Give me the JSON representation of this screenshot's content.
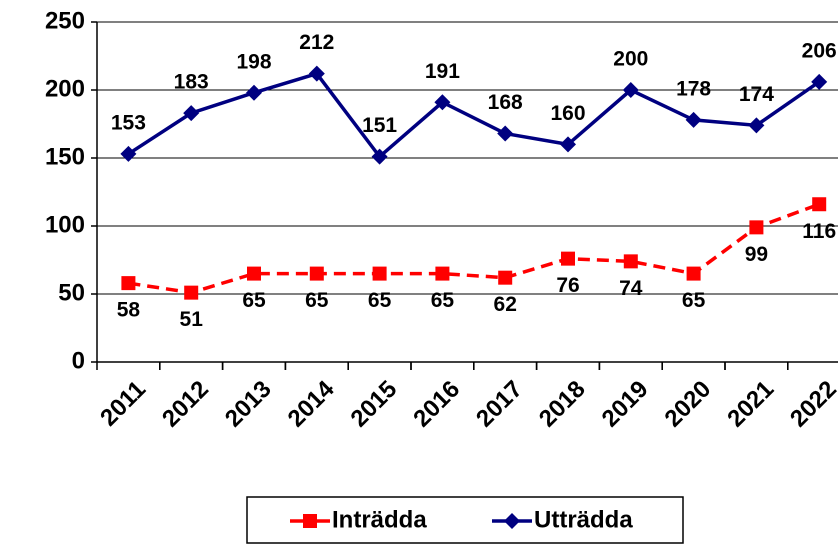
{
  "chart_data": {
    "type": "line",
    "categories": [
      "2011",
      "2012",
      "2013",
      "2014",
      "2015",
      "2016",
      "2017",
      "2018",
      "2019",
      "2020",
      "2021",
      "2022"
    ],
    "series": [
      {
        "name": "Inträdda",
        "color": "#ff0000",
        "dashed": true,
        "marker": "square",
        "values": [
          58,
          51,
          65,
          65,
          65,
          65,
          62,
          76,
          74,
          65,
          99,
          116
        ]
      },
      {
        "name": "Utträdda",
        "color": "#000080",
        "dashed": false,
        "marker": "diamond",
        "values": [
          153,
          183,
          198,
          212,
          151,
          191,
          168,
          160,
          200,
          178,
          174,
          206
        ]
      }
    ],
    "ylim": [
      0,
      250
    ],
    "yticks": [
      0,
      50,
      100,
      150,
      200,
      250
    ],
    "grid": true,
    "legend": "bottom"
  }
}
